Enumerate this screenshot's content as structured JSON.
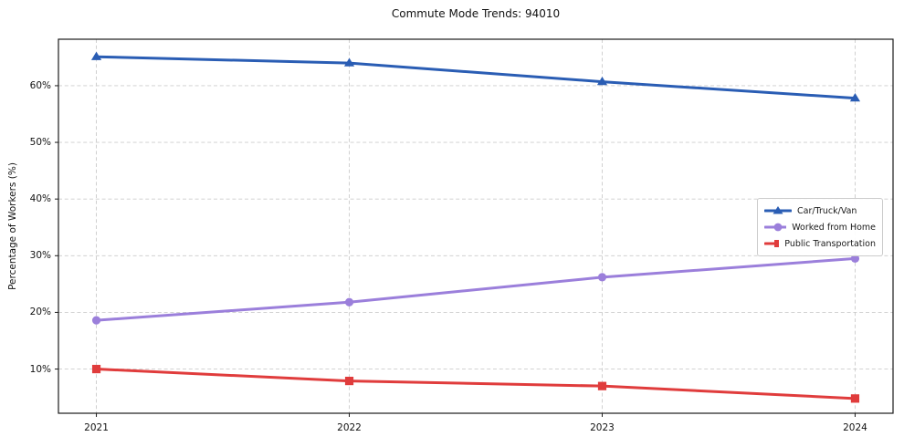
{
  "title": "Commute Mode Trends: 94010",
  "chart_data": {
    "type": "line",
    "title": "Commute Mode Trends: 94010",
    "xlabel": "",
    "ylabel": "Percentage of Workers (%)",
    "x": [
      2021,
      2022,
      2023,
      2024
    ],
    "xtick_labels": [
      "2021",
      "2022",
      "2023",
      "2024"
    ],
    "yticks": [
      10,
      20,
      30,
      40,
      50,
      60
    ],
    "ytick_labels": [
      "10%",
      "20%",
      "30%",
      "40%",
      "50%",
      "60%"
    ],
    "xlim": [
      2020.85,
      2024.15
    ],
    "ylim": [
      2.2,
      68.2
    ],
    "grid": true,
    "grid_style": "dashed",
    "legend_position": "center right",
    "series": [
      {
        "name": "Car/Truck/Van",
        "marker": "triangle",
        "color": "#2a5db4",
        "values": [
          65.1,
          64.0,
          60.7,
          57.8
        ]
      },
      {
        "name": "Worked from Home",
        "marker": "circle",
        "color": "#9b7fdb",
        "values": [
          18.6,
          21.8,
          26.2,
          29.5
        ]
      },
      {
        "name": "Public Transportation",
        "marker": "square",
        "color": "#e03c3c",
        "values": [
          10.0,
          7.9,
          7.0,
          4.8
        ]
      }
    ]
  },
  "colors": {
    "background": "#ffffff",
    "grid": "#cccccc",
    "spine": "#1a1a1a",
    "text": "#111111"
  }
}
